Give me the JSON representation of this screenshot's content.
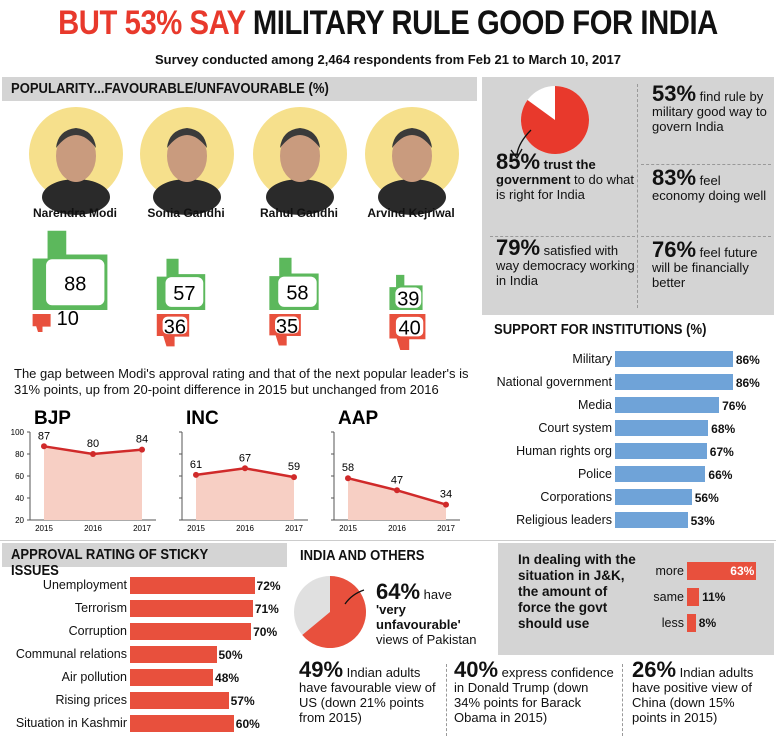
{
  "title_red": "BUT 53% SAY",
  "title_black": "MILITARY RULE GOOD FOR INDIA",
  "subtitle": "Survey conducted among 2,464 respondents from Feb 21 to March 10, 2017",
  "popularity": {
    "header": "POPULARITY...FAVOURABLE/UNFAVOURABLE (%)",
    "leaders": [
      {
        "name": "Narendra Modi",
        "favourable": "88",
        "unfavourable": "10"
      },
      {
        "name": "Sonia Gandhi",
        "favourable": "57",
        "unfavourable": "36"
      },
      {
        "name": "Rahul Gandhi",
        "favourable": "58",
        "unfavourable": "35"
      },
      {
        "name": "Arvind Kejriwal",
        "favourable": "39",
        "unfavourable": "40"
      }
    ],
    "gap_text": "The gap between Modi's approval rating and that of the next popular leader's is 31% points, up from 20-point difference in 2015 but unchanged from 2016"
  },
  "stats": {
    "trust_pct": "85%",
    "trust_bold": "trust the government",
    "trust_text": "to do what is right for India",
    "military_pct": "53%",
    "military_text": "find rule by military good way to govern India",
    "economy_pct": "83%",
    "economy_text": "feel economy doing well",
    "democracy_pct": "79%",
    "democracy_text": "satisfied with way democracy working in India",
    "future_pct": "76%",
    "future_text": "feel future will be financially better"
  },
  "chart_data": [
    {
      "type": "pie",
      "title": "trust the government",
      "values": [
        85,
        15
      ]
    },
    {
      "type": "bar",
      "title": "SUPPORT FOR INSTITUTIONS (%)",
      "categories": [
        "Military",
        "National government",
        "Media",
        "Court system",
        "Human rights org",
        "Police",
        "Corporations",
        "Religious leaders"
      ],
      "values": [
        86,
        86,
        76,
        68,
        67,
        66,
        56,
        53
      ]
    },
    {
      "type": "area",
      "title": "BJP",
      "x": [
        "2015",
        "2016",
        "2017"
      ],
      "values": [
        87,
        80,
        84
      ],
      "ylim": [
        20,
        100
      ],
      "yticks": [
        "100",
        "80",
        "60",
        "40",
        "20"
      ]
    },
    {
      "type": "area",
      "title": "INC",
      "x": [
        "2015",
        "2016",
        "2017"
      ],
      "values": [
        61,
        67,
        59
      ],
      "ylim": [
        20,
        100
      ]
    },
    {
      "type": "area",
      "title": "AAP",
      "x": [
        "2015",
        "2016",
        "2017"
      ],
      "values": [
        58,
        47,
        34
      ],
      "ylim": [
        20,
        100
      ]
    },
    {
      "type": "bar",
      "title": "APPROVAL RATING OF STICKY ISSUES",
      "categories": [
        "Unemployment",
        "Terrorism",
        "Corruption",
        "Communal relations",
        "Air pollution",
        "Rising prices",
        "Situation in Kashmir"
      ],
      "values": [
        72,
        71,
        70,
        50,
        48,
        57,
        60
      ]
    },
    {
      "type": "pie",
      "title": "very unfavourable views of Pakistan",
      "values": [
        64,
        36
      ]
    },
    {
      "type": "bar",
      "title": "In dealing with the situation in J&K, the amount of force the govt should use",
      "categories": [
        "more",
        "same",
        "less"
      ],
      "values": [
        63,
        11,
        8
      ]
    }
  ],
  "institutions_header": "SUPPORT FOR INSTITUTIONS (%)",
  "sticky_header": "APPROVAL RATING OF STICKY ISSUES",
  "india_others": {
    "header": "INDIA AND OTHERS",
    "pak_pct": "64%",
    "pak_text1": "have",
    "pak_quote": "'very unfavourable'",
    "pak_text2": "views of Pakistan",
    "us_pct": "49%",
    "us_text": "Indian adults have favourable view of US (down 21% points from 2015)",
    "trump_pct": "40%",
    "trump_text": "express confidence in Donald Trump (down 34% points for Barack Obama in 2015)",
    "china_pct": "26%",
    "china_text": "Indian adults have positive view of China (down 15% points in 2015)"
  },
  "jk": {
    "question": "In dealing with the situation in J&K, the amount of force the govt should use"
  },
  "colors": {
    "accent_red": "#e8392c",
    "green": "#5cb85c",
    "blue_bar": "#6fa3d8",
    "grey_panel": "#d4d4d4",
    "yellow_circle": "#f6e08c"
  }
}
